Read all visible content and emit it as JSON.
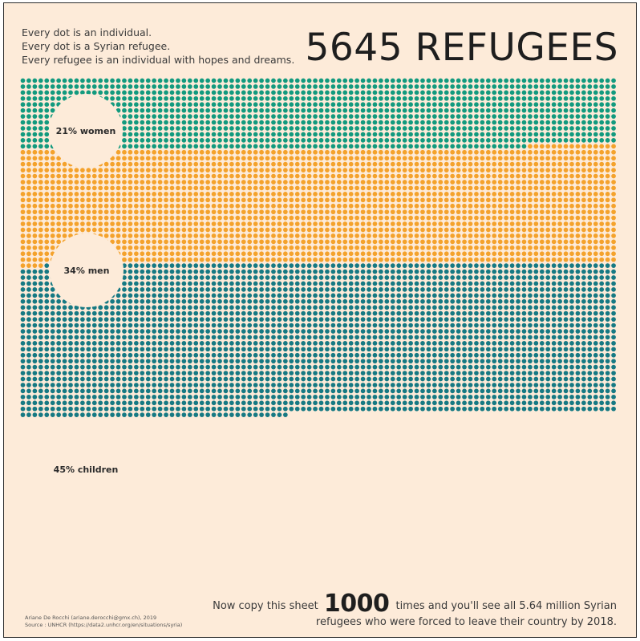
{
  "intro": {
    "line1": "Every dot is an individual.",
    "line2": "Every dot is a Syrian refugee.",
    "line3": "Every refugee is an individual with hopes and dreams."
  },
  "title": "5645 REFUGEES",
  "colors": {
    "background": "#fdebd9",
    "women": "#129a7e",
    "men": "#f4a22c",
    "children": "#167983"
  },
  "chart_data": {
    "type": "dot-matrix",
    "total": 5645,
    "series": [
      {
        "label": "21% women",
        "percent": 21,
        "count": 1185,
        "color": "#129a7e"
      },
      {
        "label": "34% men",
        "percent": 34,
        "count": 1919,
        "color": "#f4a22c"
      },
      {
        "label": "45% children",
        "percent": 45,
        "count": 2541,
        "color": "#167983"
      }
    ]
  },
  "footer": {
    "credit_line1": "Ariane De Rocchi (ariane.derocchi@gmx.ch), 2019",
    "credit_line2": "Source : UNHCR (https://data2.unhcr.org/en/situations/syria)",
    "copy_before": "Now copy this sheet",
    "copy_number": "1000",
    "copy_after": "times and you'll see all 5.64 million Syrian",
    "copy_line2": "refugees who were forced to leave their country by 2018."
  }
}
